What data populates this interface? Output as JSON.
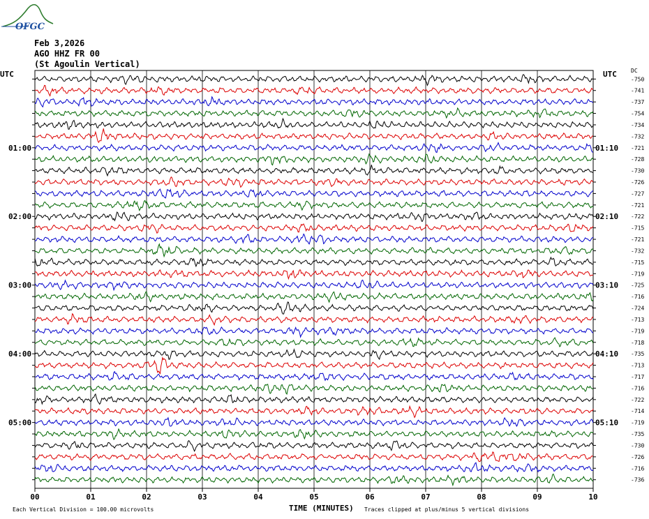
{
  "logo": {
    "text": "OFGC",
    "color": "#2f7d2f",
    "text_color": "#1d4fa0"
  },
  "header": {
    "date": "Feb 3,2026",
    "station": "AGO HHZ FR 00",
    "description": "(St Agoulin Vertical)"
  },
  "axis": {
    "left_label": "UTC",
    "right_label": "UTC",
    "dc_label": "DC"
  },
  "footer": {
    "xlabel": "TIME (MINUTES)",
    "scale_note": "Each Vertical Division =  100.00 microvolts",
    "clip_note": "Traces clipped at plus/minus 5 vertical divisions"
  },
  "chart_data": {
    "type": "line",
    "title": "",
    "xlabel": "TIME (MINUTES)",
    "xlim": [
      0,
      10
    ],
    "x_ticks": [
      "00",
      "01",
      "02",
      "03",
      "04",
      "05",
      "06",
      "07",
      "08",
      "09",
      "10"
    ],
    "row_minutes": 10,
    "trace_colors": [
      "#000000",
      "#dd0000",
      "#0000cc",
      "#006600"
    ],
    "left_time_labels": [
      {
        "row": 6,
        "label": "01:00"
      },
      {
        "row": 12,
        "label": "02:00"
      },
      {
        "row": 18,
        "label": "03:00"
      },
      {
        "row": 24,
        "label": "04:00"
      },
      {
        "row": 30,
        "label": "05:00"
      }
    ],
    "right_time_labels": [
      {
        "row": 6,
        "label": "01:10"
      },
      {
        "row": 12,
        "label": "02:10"
      },
      {
        "row": 18,
        "label": "03:10"
      },
      {
        "row": 24,
        "label": "04:10"
      },
      {
        "row": 30,
        "label": "05:10"
      }
    ],
    "dc_offsets": [
      -750,
      -741,
      -737,
      -754,
      -734,
      -732,
      -721,
      -728,
      -730,
      -726,
      -727,
      -721,
      -722,
      -715,
      -721,
      -732,
      -715,
      -719,
      -725,
      -716,
      -724,
      -713,
      -719,
      -718,
      -735,
      -713,
      -717,
      -716,
      -722,
      -714,
      -719,
      -735,
      -730,
      -726,
      -716,
      -736
    ]
  }
}
